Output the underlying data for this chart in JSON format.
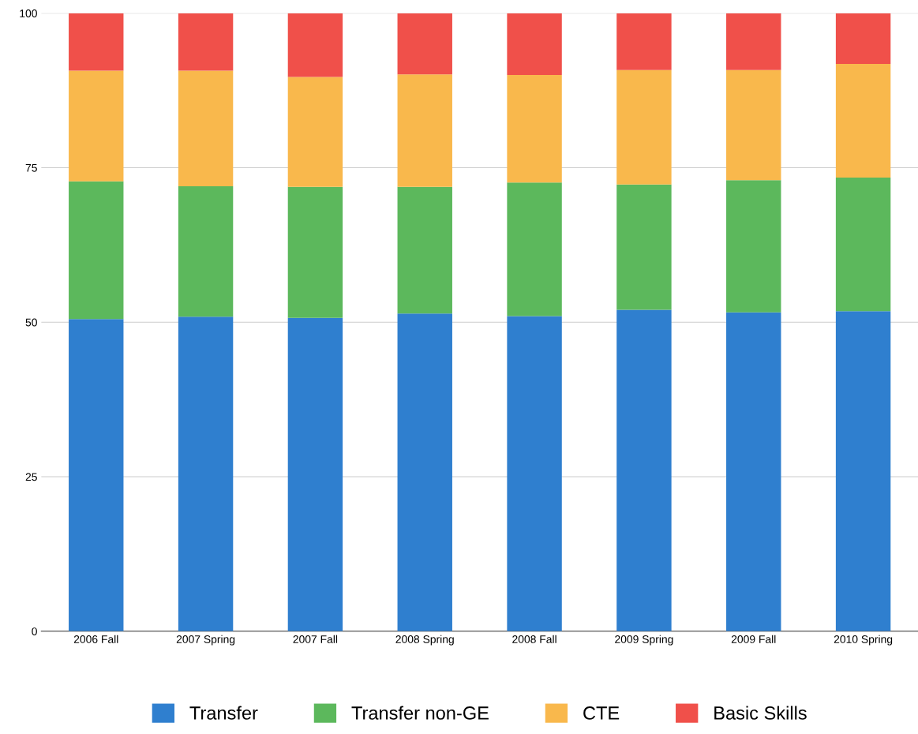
{
  "chart_data": {
    "type": "bar",
    "stacked": true,
    "categories": [
      "2006 Fall",
      "2007 Spring",
      "2007 Fall",
      "2008 Spring",
      "2008 Fall",
      "2009 Spring",
      "2009 Fall",
      "2010 Spring"
    ],
    "series": [
      {
        "name": "Transfer",
        "color": "#2f7fcf",
        "values": [
          50.5,
          50.9,
          50.7,
          51.4,
          51.0,
          52.0,
          51.6,
          51.8
        ]
      },
      {
        "name": "Transfer non-GE",
        "color": "#5cb85c",
        "values": [
          22.3,
          21.1,
          21.2,
          20.5,
          21.6,
          20.3,
          21.4,
          21.6
        ]
      },
      {
        "name": "CTE",
        "color": "#f9b84c",
        "values": [
          17.9,
          18.7,
          17.8,
          18.2,
          17.4,
          18.5,
          17.8,
          18.4
        ]
      },
      {
        "name": "Basic Skills",
        "color": "#f0504a",
        "values": [
          9.3,
          9.3,
          10.3,
          9.9,
          10.0,
          9.2,
          9.2,
          8.2
        ]
      }
    ],
    "ylim": [
      0,
      100
    ],
    "yticks": [
      0,
      25,
      50,
      75,
      100
    ],
    "grid": "y",
    "legend": "bottom"
  }
}
